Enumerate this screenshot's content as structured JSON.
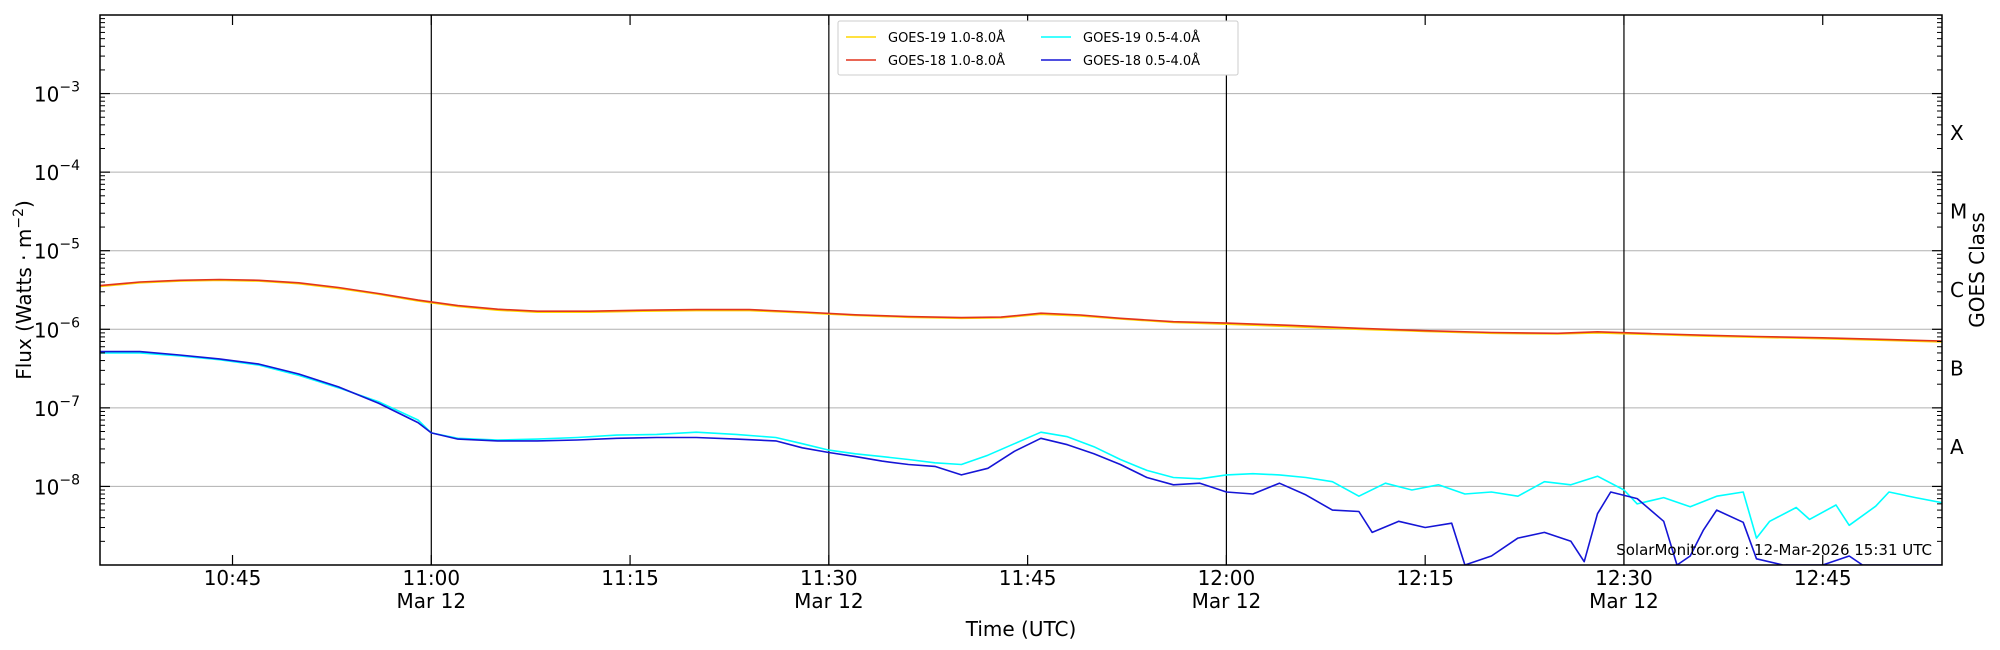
{
  "chart_data": {
    "type": "line",
    "title": "",
    "xlabel": "Time (UTC)",
    "ylabel_base": "Flux (Watts · m",
    "ylabel_exp": "−2",
    "ylabel_tail": ")",
    "y2label": "GOES Class",
    "y_scale": "log",
    "ylim": [
      1e-09,
      0.01
    ],
    "xlim": [
      "10:35",
      "12:54"
    ],
    "grid": "horizontal",
    "legend_position": "top-center",
    "y_ticks": [
      {
        "mantissa": "10",
        "exp": "−3",
        "value": 0.001
      },
      {
        "mantissa": "10",
        "exp": "−4",
        "value": 0.0001
      },
      {
        "mantissa": "10",
        "exp": "−5",
        "value": 1e-05
      },
      {
        "mantissa": "10",
        "exp": "−6",
        "value": 1e-06
      },
      {
        "mantissa": "10",
        "exp": "−7",
        "value": 1e-07
      },
      {
        "mantissa": "10",
        "exp": "−8",
        "value": 1e-08
      }
    ],
    "goes_classes": [
      {
        "label": "X",
        "value": 0.000316
      },
      {
        "label": "M",
        "value": 3.16e-05
      },
      {
        "label": "C",
        "value": 3.16e-06
      },
      {
        "label": "B",
        "value": 3.16e-07
      },
      {
        "label": "A",
        "value": 3.16e-08
      }
    ],
    "x_ticks": [
      {
        "time": "10:45",
        "label": "10:45",
        "sublabel": "",
        "vline": false
      },
      {
        "time": "11:00",
        "label": "11:00",
        "sublabel": "Mar 12",
        "vline": true
      },
      {
        "time": "11:15",
        "label": "11:15",
        "sublabel": "",
        "vline": false
      },
      {
        "time": "11:30",
        "label": "11:30",
        "sublabel": "Mar 12",
        "vline": true
      },
      {
        "time": "11:45",
        "label": "11:45",
        "sublabel": "",
        "vline": false
      },
      {
        "time": "12:00",
        "label": "12:00",
        "sublabel": "Mar 12",
        "vline": true
      },
      {
        "time": "12:15",
        "label": "12:15",
        "sublabel": "",
        "vline": false
      },
      {
        "time": "12:30",
        "label": "12:30",
        "sublabel": "Mar 12",
        "vline": true
      },
      {
        "time": "12:45",
        "label": "12:45",
        "sublabel": "",
        "vline": false
      }
    ],
    "series": [
      {
        "name": "GOES-19 1.0-8.0Å",
        "color": "#FFD700",
        "points": [
          [
            "10:35",
            3.5e-06
          ],
          [
            "10:38",
            3.9e-06
          ],
          [
            "10:41",
            4.1e-06
          ],
          [
            "10:44",
            4.2e-06
          ],
          [
            "10:47",
            4.1e-06
          ],
          [
            "10:50",
            3.8e-06
          ],
          [
            "10:53",
            3.3e-06
          ],
          [
            "10:56",
            2.8e-06
          ],
          [
            "10:59",
            2.3e-06
          ],
          [
            "11:02",
            1.95e-06
          ],
          [
            "11:05",
            1.75e-06
          ],
          [
            "11:08",
            1.65e-06
          ],
          [
            "11:12",
            1.65e-06
          ],
          [
            "11:16",
            1.7e-06
          ],
          [
            "11:20",
            1.73e-06
          ],
          [
            "11:24",
            1.73e-06
          ],
          [
            "11:28",
            1.62e-06
          ],
          [
            "11:32",
            1.5e-06
          ],
          [
            "11:36",
            1.42e-06
          ],
          [
            "11:40",
            1.38e-06
          ],
          [
            "11:43",
            1.4e-06
          ],
          [
            "11:46",
            1.55e-06
          ],
          [
            "11:49",
            1.48e-06
          ],
          [
            "11:52",
            1.35e-06
          ],
          [
            "11:56",
            1.22e-06
          ],
          [
            "12:00",
            1.16e-06
          ],
          [
            "12:05",
            1.08e-06
          ],
          [
            "12:10",
            1e-06
          ],
          [
            "12:15",
            9.4e-07
          ],
          [
            "12:20",
            8.9e-07
          ],
          [
            "12:25",
            8.7e-07
          ],
          [
            "12:28",
            9e-07
          ],
          [
            "12:32",
            8.6e-07
          ],
          [
            "12:36",
            8.2e-07
          ],
          [
            "12:40",
            7.9e-07
          ],
          [
            "12:45",
            7.6e-07
          ],
          [
            "12:50",
            7.2e-07
          ],
          [
            "12:54",
            6.9e-07
          ]
        ]
      },
      {
        "name": "GOES-18 1.0-8.0Å",
        "color": "#E2341D",
        "points": [
          [
            "10:35",
            3.6e-06
          ],
          [
            "10:38",
            4e-06
          ],
          [
            "10:41",
            4.2e-06
          ],
          [
            "10:44",
            4.3e-06
          ],
          [
            "10:47",
            4.2e-06
          ],
          [
            "10:50",
            3.9e-06
          ],
          [
            "10:53",
            3.4e-06
          ],
          [
            "10:56",
            2.85e-06
          ],
          [
            "10:59",
            2.35e-06
          ],
          [
            "11:02",
            2e-06
          ],
          [
            "11:05",
            1.8e-06
          ],
          [
            "11:08",
            1.7e-06
          ],
          [
            "11:12",
            1.7e-06
          ],
          [
            "11:16",
            1.75e-06
          ],
          [
            "11:20",
            1.78e-06
          ],
          [
            "11:24",
            1.78e-06
          ],
          [
            "11:28",
            1.66e-06
          ],
          [
            "11:32",
            1.53e-06
          ],
          [
            "11:36",
            1.45e-06
          ],
          [
            "11:40",
            1.41e-06
          ],
          [
            "11:43",
            1.43e-06
          ],
          [
            "11:46",
            1.6e-06
          ],
          [
            "11:49",
            1.52e-06
          ],
          [
            "11:52",
            1.38e-06
          ],
          [
            "11:56",
            1.25e-06
          ],
          [
            "12:00",
            1.2e-06
          ],
          [
            "12:05",
            1.12e-06
          ],
          [
            "12:10",
            1.03e-06
          ],
          [
            "12:15",
            9.6e-07
          ],
          [
            "12:20",
            9.1e-07
          ],
          [
            "12:25",
            8.9e-07
          ],
          [
            "12:28",
            9.3e-07
          ],
          [
            "12:32",
            8.8e-07
          ],
          [
            "12:36",
            8.4e-07
          ],
          [
            "12:40",
            8.1e-07
          ],
          [
            "12:45",
            7.8e-07
          ],
          [
            "12:50",
            7.4e-07
          ],
          [
            "12:54",
            7.1e-07
          ]
        ]
      },
      {
        "name": "GOES-19 0.5-4.0Å",
        "color": "#00FFFF",
        "points": [
          [
            "10:35",
            5e-07
          ],
          [
            "10:38",
            5e-07
          ],
          [
            "10:41",
            4.6e-07
          ],
          [
            "10:44",
            4.1e-07
          ],
          [
            "10:47",
            3.5e-07
          ],
          [
            "10:50",
            2.6e-07
          ],
          [
            "10:53",
            1.8e-07
          ],
          [
            "10:56",
            1.2e-07
          ],
          [
            "10:59",
            7e-08
          ],
          [
            "11:00",
            4.8e-08
          ],
          [
            "11:02",
            4.1e-08
          ],
          [
            "11:05",
            3.9e-08
          ],
          [
            "11:08",
            4e-08
          ],
          [
            "11:11",
            4.2e-08
          ],
          [
            "11:14",
            4.5e-08
          ],
          [
            "11:17",
            4.6e-08
          ],
          [
            "11:20",
            4.9e-08
          ],
          [
            "11:23",
            4.6e-08
          ],
          [
            "11:26",
            4.2e-08
          ],
          [
            "11:28",
            3.5e-08
          ],
          [
            "11:30",
            2.9e-08
          ],
          [
            "11:32",
            2.6e-08
          ],
          [
            "11:34",
            2.4e-08
          ],
          [
            "11:36",
            2.2e-08
          ],
          [
            "11:38",
            2e-08
          ],
          [
            "11:40",
            1.9e-08
          ],
          [
            "11:42",
            2.5e-08
          ],
          [
            "11:44",
            3.5e-08
          ],
          [
            "11:46",
            4.9e-08
          ],
          [
            "11:48",
            4.3e-08
          ],
          [
            "11:50",
            3.2e-08
          ],
          [
            "11:52",
            2.2e-08
          ],
          [
            "11:54",
            1.6e-08
          ],
          [
            "11:56",
            1.3e-08
          ],
          [
            "11:58",
            1.25e-08
          ],
          [
            "12:00",
            1.4e-08
          ],
          [
            "12:02",
            1.45e-08
          ],
          [
            "12:04",
            1.4e-08
          ],
          [
            "12:06",
            1.3e-08
          ],
          [
            "12:08",
            1.15e-08
          ],
          [
            "12:10",
            7.5e-09
          ],
          [
            "12:12",
            1.1e-08
          ],
          [
            "12:14",
            9e-09
          ],
          [
            "12:16",
            1.05e-08
          ],
          [
            "12:18",
            8e-09
          ],
          [
            "12:20",
            8.5e-09
          ],
          [
            "12:22",
            7.5e-09
          ],
          [
            "12:24",
            1.15e-08
          ],
          [
            "12:26",
            1.05e-08
          ],
          [
            "12:28",
            1.35e-08
          ],
          [
            "12:30",
            9e-09
          ],
          [
            "12:31",
            6e-09
          ],
          [
            "12:33",
            7.2e-09
          ],
          [
            "12:35",
            5.5e-09
          ],
          [
            "12:37",
            7.5e-09
          ],
          [
            "12:39",
            8.5e-09
          ],
          [
            "12:40",
            2.2e-09
          ],
          [
            "12:41",
            3.6e-09
          ],
          [
            "12:43",
            5.4e-09
          ],
          [
            "12:44",
            3.8e-09
          ],
          [
            "12:46",
            5.8e-09
          ],
          [
            "12:47",
            3.2e-09
          ],
          [
            "12:49",
            5.6e-09
          ],
          [
            "12:50",
            8.5e-09
          ],
          [
            "12:52",
            7.2e-09
          ],
          [
            "12:54",
            6.2e-09
          ]
        ]
      },
      {
        "name": "GOES-18 0.5-4.0Å",
        "color": "#1515D6",
        "points": [
          [
            "10:35",
            5.2e-07
          ],
          [
            "10:38",
            5.2e-07
          ],
          [
            "10:41",
            4.7e-07
          ],
          [
            "10:44",
            4.2e-07
          ],
          [
            "10:47",
            3.6e-07
          ],
          [
            "10:50",
            2.7e-07
          ],
          [
            "10:53",
            1.85e-07
          ],
          [
            "10:56",
            1.15e-07
          ],
          [
            "10:59",
            6.5e-08
          ],
          [
            "11:00",
            4.8e-08
          ],
          [
            "11:02",
            4e-08
          ],
          [
            "11:05",
            3.8e-08
          ],
          [
            "11:08",
            3.8e-08
          ],
          [
            "11:11",
            3.9e-08
          ],
          [
            "11:14",
            4.1e-08
          ],
          [
            "11:17",
            4.2e-08
          ],
          [
            "11:20",
            4.2e-08
          ],
          [
            "11:23",
            4e-08
          ],
          [
            "11:26",
            3.8e-08
          ],
          [
            "11:28",
            3.1e-08
          ],
          [
            "11:30",
            2.7e-08
          ],
          [
            "11:32",
            2.4e-08
          ],
          [
            "11:34",
            2.1e-08
          ],
          [
            "11:36",
            1.9e-08
          ],
          [
            "11:38",
            1.8e-08
          ],
          [
            "11:40",
            1.4e-08
          ],
          [
            "11:42",
            1.7e-08
          ],
          [
            "11:44",
            2.8e-08
          ],
          [
            "11:46",
            4.1e-08
          ],
          [
            "11:48",
            3.4e-08
          ],
          [
            "11:50",
            2.6e-08
          ],
          [
            "11:52",
            1.9e-08
          ],
          [
            "11:54",
            1.3e-08
          ],
          [
            "11:56",
            1.05e-08
          ],
          [
            "11:58",
            1.1e-08
          ],
          [
            "12:00",
            8.5e-09
          ],
          [
            "12:02",
            8e-09
          ],
          [
            "12:04",
            1.1e-08
          ],
          [
            "12:06",
            7.8e-09
          ],
          [
            "12:08",
            5e-09
          ],
          [
            "12:10",
            4.8e-09
          ],
          [
            "12:11",
            2.6e-09
          ],
          [
            "12:13",
            3.6e-09
          ],
          [
            "12:15",
            3e-09
          ],
          [
            "12:17",
            3.4e-09
          ],
          [
            "12:18",
            9e-10
          ],
          [
            "12:20",
            1.3e-09
          ],
          [
            "12:22",
            2.2e-09
          ],
          [
            "12:24",
            2.6e-09
          ],
          [
            "12:26",
            2e-09
          ],
          [
            "12:27",
            1.1e-09
          ],
          [
            "12:28",
            4.5e-09
          ],
          [
            "12:29",
            8.5e-09
          ],
          [
            "12:31",
            7e-09
          ],
          [
            "12:33",
            3.6e-09
          ],
          [
            "12:34",
            1e-09
          ],
          [
            "12:35",
            1.3e-09
          ],
          [
            "12:36",
            2.8e-09
          ],
          [
            "12:37",
            5e-09
          ],
          [
            "12:39",
            3.5e-09
          ],
          [
            "12:40",
            1.2e-09
          ],
          [
            "12:42",
            9.5e-10
          ],
          [
            "12:45",
            9e-10
          ],
          [
            "12:47",
            1.3e-09
          ],
          [
            "12:48",
            9e-10
          ],
          [
            "12:54",
            9e-10
          ]
        ]
      }
    ],
    "credit": "SolarMonitor.org : 12-Mar-2026 15:31 UTC"
  }
}
